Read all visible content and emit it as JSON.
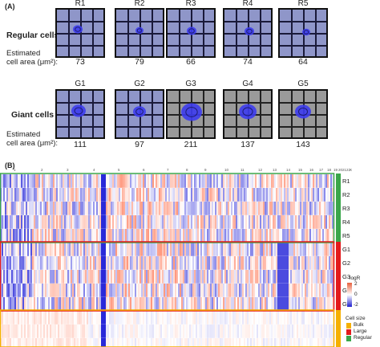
{
  "panel_a_label": "(A)",
  "panel_b_label": "(B)",
  "regular": {
    "title": "Regular cells",
    "est_line1": "Estimated",
    "est_line2": "cell area (μm²):",
    "cells": [
      {
        "id": "R1",
        "area": "73"
      },
      {
        "id": "R2",
        "area": "79"
      },
      {
        "id": "R3",
        "area": "66"
      },
      {
        "id": "R4",
        "area": "74"
      },
      {
        "id": "R5",
        "area": "64"
      }
    ]
  },
  "giant": {
    "title": "Giant cells",
    "est_line1": "Estimated",
    "est_line2": "cell area (μm²):",
    "cells": [
      {
        "id": "G1",
        "area": "111"
      },
      {
        "id": "G2",
        "area": "97"
      },
      {
        "id": "G3",
        "area": "211"
      },
      {
        "id": "G4",
        "area": "137"
      },
      {
        "id": "G5",
        "area": "143"
      }
    ]
  },
  "heatmap": {
    "chromosomes": [
      "1",
      "2",
      "3",
      "4",
      "5",
      "6",
      "7",
      "8",
      "9",
      "10",
      "11",
      "12",
      "13",
      "14",
      "15",
      "16",
      "17",
      "18",
      "19",
      "20",
      "21",
      "22",
      "X"
    ],
    "row_labels": [
      "R1",
      "R2",
      "R3",
      "R4",
      "R5",
      "G1",
      "G2",
      "G3",
      "G4",
      "G5",
      "",
      "",
      ""
    ],
    "groups": [
      "Regular",
      "Regular",
      "Regular",
      "Regular",
      "Regular",
      "Large",
      "Large",
      "Large",
      "Large",
      "Large",
      "Bulk",
      "Bulk",
      "Bulk"
    ],
    "colors": {
      "regular": "#3aa64a",
      "large": "#e31a1c",
      "bulk": "#f5b000",
      "pos": "#e8603c",
      "neg": "#2020d0"
    }
  },
  "legend": {
    "logr_title": "logR",
    "logr_ticks": [
      "2",
      "0",
      "-2"
    ],
    "size_title": "Cell size",
    "items": [
      {
        "label": "Bulk",
        "color": "#f5b000"
      },
      {
        "label": "Large",
        "color": "#e31a1c"
      },
      {
        "label": "Regular",
        "color": "#3aa64a"
      }
    ]
  }
}
